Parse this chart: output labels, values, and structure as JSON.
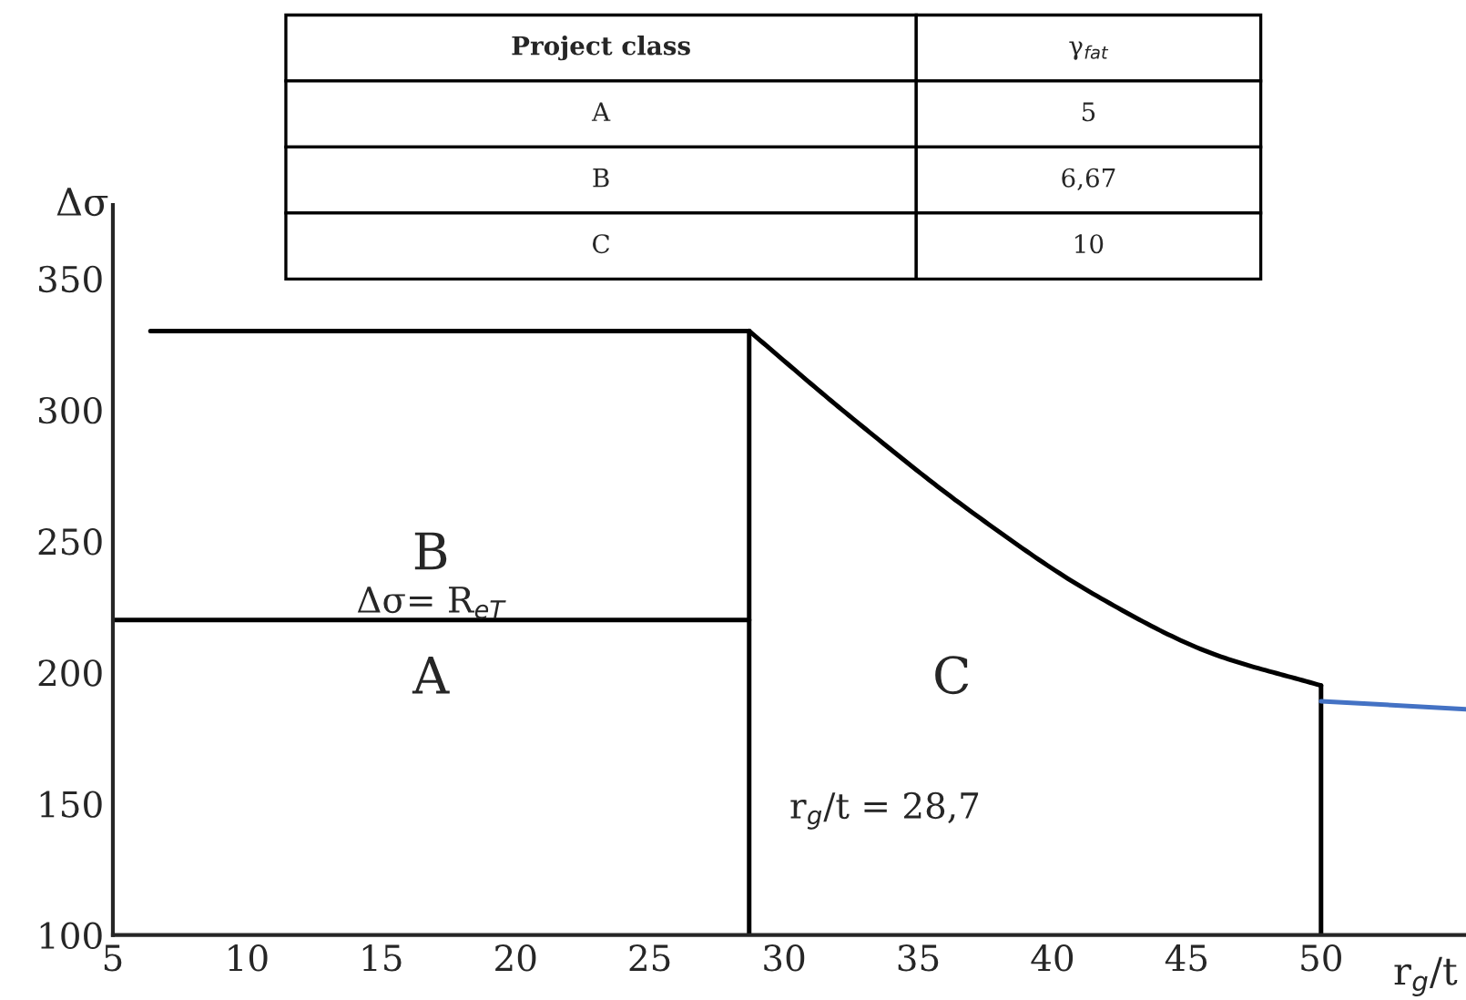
{
  "chart_data": {
    "type": "line",
    "xlabel": "r$_{g}$/t",
    "ylabel": "Δσ",
    "xlim": [
      5,
      55.4
    ],
    "ylim": [
      100,
      378
    ],
    "xticks": [
      5,
      10,
      15,
      20,
      25,
      30,
      35,
      40,
      45,
      50
    ],
    "yticks": [
      100,
      150,
      200,
      250,
      300,
      350
    ],
    "grid": false,
    "legend": false,
    "marker": "none",
    "line_style": "solid",
    "series": [
      {
        "color": "#000000",
        "x": [
          6.4,
          28.7
        ],
        "values": [
          330,
          330
        ]
      },
      {
        "color": "#000000",
        "x": [
          28.7,
          32.4,
          37,
          41.5,
          46,
          50
        ],
        "values": [
          330,
          298,
          261,
          230,
          207,
          195
        ]
      },
      {
        "color": "#000000",
        "x": [
          5,
          28.7
        ],
        "values": [
          220,
          220
        ]
      },
      {
        "color": "#000000",
        "x": [
          28.7,
          28.7
        ],
        "values": [
          100,
          330
        ]
      },
      {
        "color": "#000000",
        "x": [
          50,
          50
        ],
        "values": [
          100,
          195
        ]
      },
      {
        "color": "#4472c4",
        "x": [
          50,
          55.4
        ],
        "values": [
          189,
          186
        ]
      }
    ],
    "annotations": [
      "B",
      "A",
      "C",
      "Δσ= R$_{eT}$",
      "r$_{g}$/t = 28,7",
      "Project class",
      "γ$_{fat}$",
      "A",
      "5",
      "B",
      "6,67",
      "C",
      "10"
    ]
  }
}
